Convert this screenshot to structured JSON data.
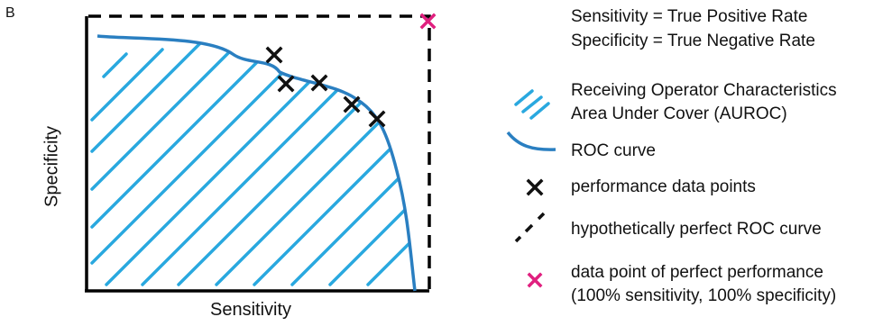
{
  "figure": {
    "panel_label": "B",
    "x_axis_label": "Sensitivity",
    "y_axis_label": "Specificity"
  },
  "definitions": [
    "Sensitivity = True Positive Rate",
    "Specificity = True Negative Rate"
  ],
  "legend": {
    "auroc": [
      "Receiving Operator Characteristics",
      "Area Under Cover (AUROC)"
    ],
    "roc_curve": "ROC curve",
    "data_points": "performance data points",
    "perfect_curve": "hypothetically perfect ROC curve",
    "perfect_point": [
      "data point of perfect performance",
      "(100% sensitivity, 100% specificity)"
    ]
  },
  "colors": {
    "roc_curve": "#2a7fc1",
    "hatch": "#29a8df",
    "data_points": "#111111",
    "perfect_point": "#e0207f",
    "axes": "#000000"
  }
}
